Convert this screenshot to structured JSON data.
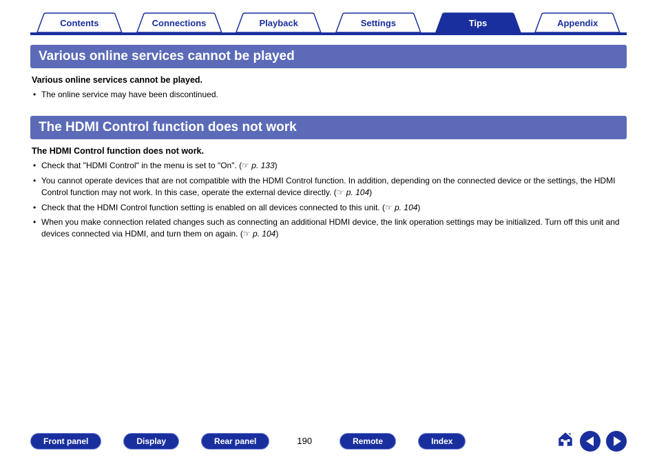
{
  "colors": {
    "brand": "#1a2f9e",
    "bar": "#5b6bb8",
    "tab_border": "#1a2f9e",
    "white": "#ffffff",
    "text": "#000000"
  },
  "tabs": [
    {
      "label": "Contents",
      "active": false
    },
    {
      "label": "Connections",
      "active": false
    },
    {
      "label": "Playback",
      "active": false
    },
    {
      "label": "Settings",
      "active": false
    },
    {
      "label": "Tips",
      "active": true
    },
    {
      "label": "Appendix",
      "active": false
    }
  ],
  "section1": {
    "title": "Various online services cannot be played",
    "sub": "Various online services cannot be played.",
    "bullets": [
      {
        "text": "The online service may have been discontinued."
      }
    ]
  },
  "section2": {
    "title": "The HDMI Control function does not work",
    "sub": "The HDMI Control function does not work.",
    "bullets": [
      {
        "text": "Check that \"HDMI Control\" in the menu is set to \"On\".  (",
        "ref": "p. 133",
        "tail": ")"
      },
      {
        "text": "You cannot operate devices that are not compatible with the HDMI Control function. In addition, depending on the connected device or the settings, the HDMI Control function may not work. In this case, operate the external device directly.  (",
        "ref": "p. 104",
        "tail": ")"
      },
      {
        "text": "Check that the HDMI Control function setting is enabled on all devices connected to this unit.  (",
        "ref": "p. 104",
        "tail": ")"
      },
      {
        "text": "When you make connection related changes such as connecting an additional HDMI device, the link operation settings may be initialized. Turn off this unit and devices connected via HDMI, and turn them on again.  (",
        "ref": "p. 104",
        "tail": ")"
      }
    ]
  },
  "footer": {
    "buttons": {
      "front_panel": "Front panel",
      "display": "Display",
      "rear_panel": "Rear panel",
      "remote": "Remote",
      "index": "Index"
    },
    "page_number": "190"
  }
}
